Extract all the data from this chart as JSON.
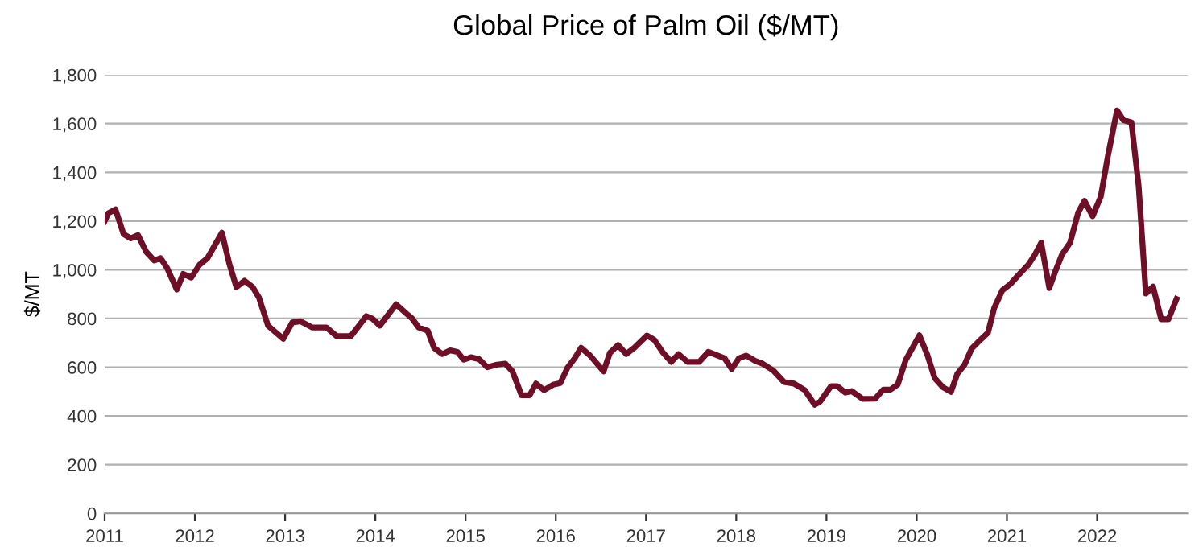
{
  "chart_data": {
    "type": "line",
    "title": "Global Price of Palm Oil ($/MT)",
    "ylabel": "$/MT",
    "x": [
      2011.0,
      2011.04,
      2011.12,
      2011.21,
      2011.29,
      2011.37,
      2011.46,
      2011.55,
      2011.62,
      2011.69,
      2011.8,
      2011.87,
      2011.96,
      2012.05,
      2012.14,
      2012.3,
      2012.38,
      2012.46,
      2012.55,
      2012.64,
      2012.71,
      2012.81,
      2012.89,
      2012.98,
      2013.08,
      2013.17,
      2013.3,
      2013.46,
      2013.57,
      2013.73,
      2013.9,
      2013.97,
      2014.05,
      2014.23,
      2014.41,
      2014.48,
      2014.58,
      2014.65,
      2014.74,
      2014.83,
      2014.91,
      2014.98,
      2015.06,
      2015.15,
      2015.24,
      2015.35,
      2015.44,
      2015.52,
      2015.62,
      2015.71,
      2015.78,
      2015.87,
      2015.97,
      2016.05,
      2016.13,
      2016.21,
      2016.28,
      2016.38,
      2016.53,
      2016.6,
      2016.69,
      2016.78,
      2016.87,
      2017.01,
      2017.09,
      2017.19,
      2017.28,
      2017.36,
      2017.46,
      2017.59,
      2017.69,
      2017.87,
      2017.95,
      2018.03,
      2018.11,
      2018.21,
      2018.29,
      2018.41,
      2018.53,
      2018.64,
      2018.76,
      2018.87,
      2018.93,
      2019.05,
      2019.12,
      2019.21,
      2019.28,
      2019.4,
      2019.54,
      2019.63,
      2019.71,
      2019.79,
      2019.88,
      2020.03,
      2020.12,
      2020.2,
      2020.29,
      2020.38,
      2020.45,
      2020.53,
      2020.61,
      2020.71,
      2020.79,
      2020.86,
      2020.95,
      2021.04,
      2021.13,
      2021.24,
      2021.31,
      2021.38,
      2021.47,
      2021.54,
      2021.61,
      2021.7,
      2021.79,
      2021.86,
      2021.95,
      2022.04,
      2022.12,
      2022.22,
      2022.29,
      2022.38,
      2022.46,
      2022.54,
      2022.62,
      2022.71,
      2022.79,
      2022.88
    ],
    "series": [
      {
        "color": "#6e0f27",
        "values": [
          1200,
          1232,
          1248,
          1146,
          1129,
          1142,
          1074,
          1038,
          1048,
          1009,
          919,
          983,
          968,
          1020,
          1048,
          1152,
          1027,
          929,
          955,
          929,
          886,
          771,
          745,
          717,
          784,
          789,
          763,
          763,
          728,
          728,
          810,
          799,
          771,
          858,
          799,
          763,
          750,
          680,
          654,
          669,
          663,
          631,
          641,
          633,
          600,
          611,
          615,
          583,
          485,
          485,
          533,
          506,
          528,
          535,
          598,
          637,
          680,
          648,
          583,
          659,
          691,
          654,
          680,
          730,
          713,
          659,
          622,
          654,
          622,
          622,
          663,
          637,
          593,
          637,
          648,
          626,
          615,
          587,
          539,
          533,
          506,
          446,
          459,
          522,
          522,
          496,
          502,
          470,
          471,
          508,
          508,
          529,
          631,
          731,
          649,
          555,
          518,
          499,
          573,
          610,
          677,
          714,
          742,
          844,
          916,
          942,
          979,
          1022,
          1062,
          1111,
          925,
          997,
          1062,
          1111,
          1235,
          1283,
          1220,
          1300,
          1468,
          1654,
          1615,
          1605,
          1344,
          903,
          931,
          797,
          797,
          880
        ]
      }
    ],
    "xlim": [
      2011,
      2023
    ],
    "xticks": [
      2011,
      2012,
      2013,
      2014,
      2015,
      2016,
      2017,
      2018,
      2019,
      2020,
      2021,
      2022
    ],
    "ylim": [
      0,
      1800
    ],
    "yticks": [
      0,
      200,
      400,
      600,
      800,
      {
        "value": 1000,
        "label": "1,000"
      },
      {
        "value": 1200,
        "label": "1,200"
      },
      {
        "value": 1400,
        "label": "1,400"
      },
      {
        "value": 1600,
        "label": "1,600"
      },
      {
        "value": 1800,
        "label": "1,800"
      }
    ],
    "grid": "y",
    "line_style": "solid",
    "marker": "none"
  }
}
